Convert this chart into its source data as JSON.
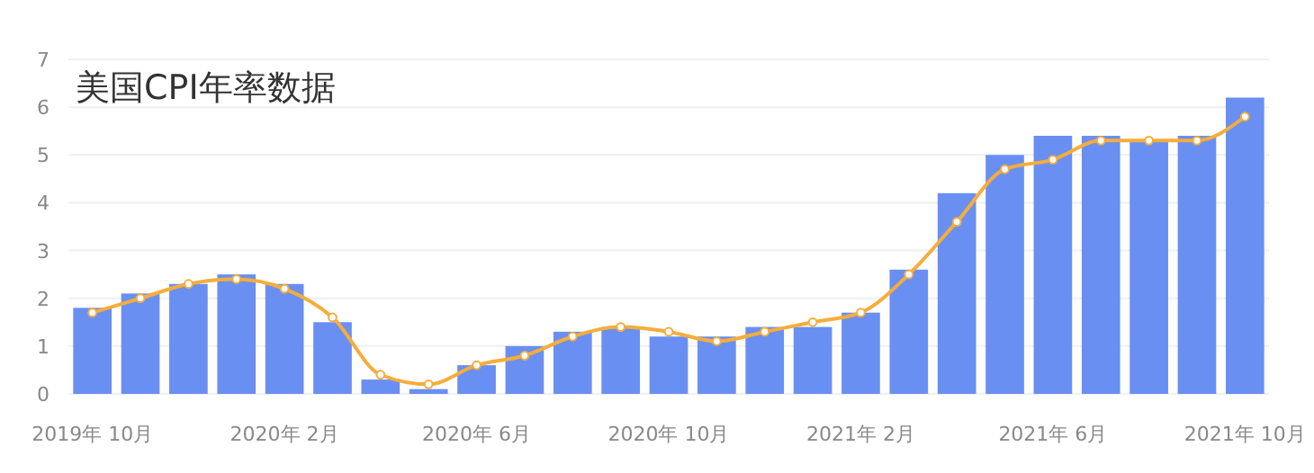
{
  "chart_data": {
    "type": "bar",
    "title": "美国CPI年率数据",
    "categories": [
      "2019年 10月",
      null,
      null,
      null,
      "2020年 2月",
      null,
      null,
      null,
      "2020年 6月",
      null,
      null,
      null,
      "2020年 10月",
      null,
      null,
      null,
      "2021年 2月",
      null,
      null,
      null,
      "2021年 6月",
      null,
      null,
      null,
      "2021年 10月"
    ],
    "series": [
      {
        "color": "#6a8ff2",
        "values": [
          1.8,
          2.1,
          2.3,
          2.5,
          2.3,
          1.5,
          0.3,
          0.1,
          0.6,
          1.0,
          1.3,
          1.4,
          1.2,
          1.2,
          1.4,
          1.4,
          1.7,
          2.6,
          4.2,
          5.0,
          5.4,
          5.4,
          5.3,
          5.4,
          6.2
        ]
      },
      {
        "type": "line",
        "color": "#f5ad3b",
        "marker": "circle",
        "values": [
          1.7,
          2.0,
          2.3,
          2.4,
          2.2,
          1.6,
          0.4,
          0.2,
          0.6,
          0.8,
          1.2,
          1.4,
          1.3,
          1.1,
          1.3,
          1.5,
          1.7,
          2.5,
          3.6,
          4.7,
          4.9,
          5.3,
          5.3,
          5.3,
          5.8
        ]
      }
    ],
    "ylim": [
      0,
      7
    ],
    "yticks": [
      0,
      1,
      2,
      3,
      4,
      5,
      6,
      7
    ],
    "grid": "y"
  }
}
